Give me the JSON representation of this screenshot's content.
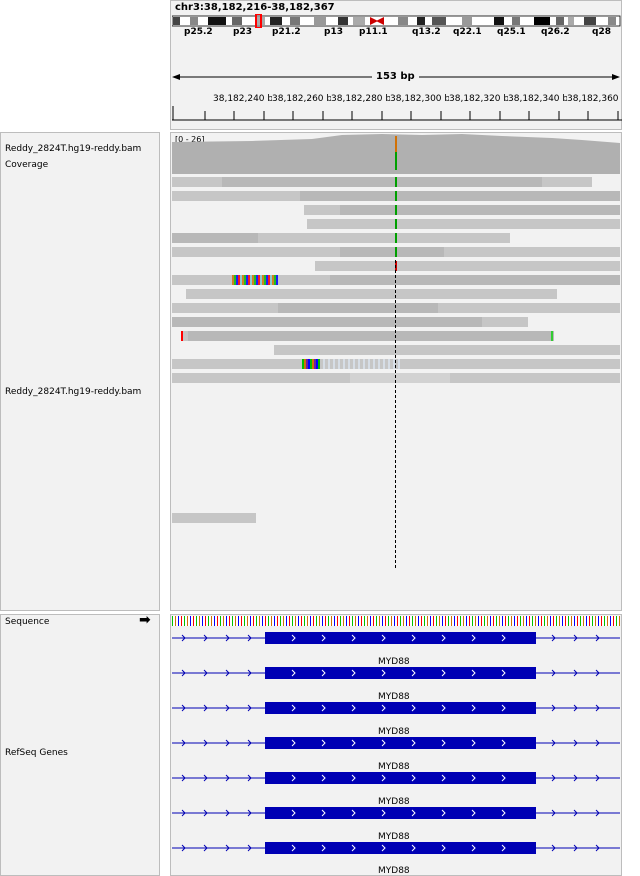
{
  "locus": "chr3:38,182,216-38,182,367",
  "cytobands": [
    "p25.2",
    "p23",
    "p21.2",
    "p13",
    "p11.1",
    "q13.2",
    "q22.1",
    "q25.1",
    "q26.2",
    "q28"
  ],
  "span": "153 bp",
  "ruler_ticks": [
    "38,182,240 bp",
    "38,182,260 bp",
    "38,182,280 bp",
    "38,182,300 bp",
    "38,182,320 bp",
    "38,182,340 bp",
    "38,182,360 bp"
  ],
  "tracks": {
    "coverage_label": "Reddy_2824T.hg19-reddy.bam Coverage",
    "coverage_range": "[0 - 26]",
    "bam_label": "Reddy_2824T.hg19-reddy.bam",
    "sequence_label": "Sequence",
    "refseq_label": "RefSeq Genes"
  },
  "genes": [
    "MYD88",
    "MYD88",
    "MYD88",
    "MYD88",
    "MYD88",
    "MYD88",
    "MYD88"
  ],
  "colors": {
    "read": "#c6c6c6",
    "coverage": "#b0b0b0",
    "gene": "#0000b4",
    "A": "#00c000",
    "C": "#0000ff",
    "G": "#d17105",
    "T": "#ff0000"
  }
}
